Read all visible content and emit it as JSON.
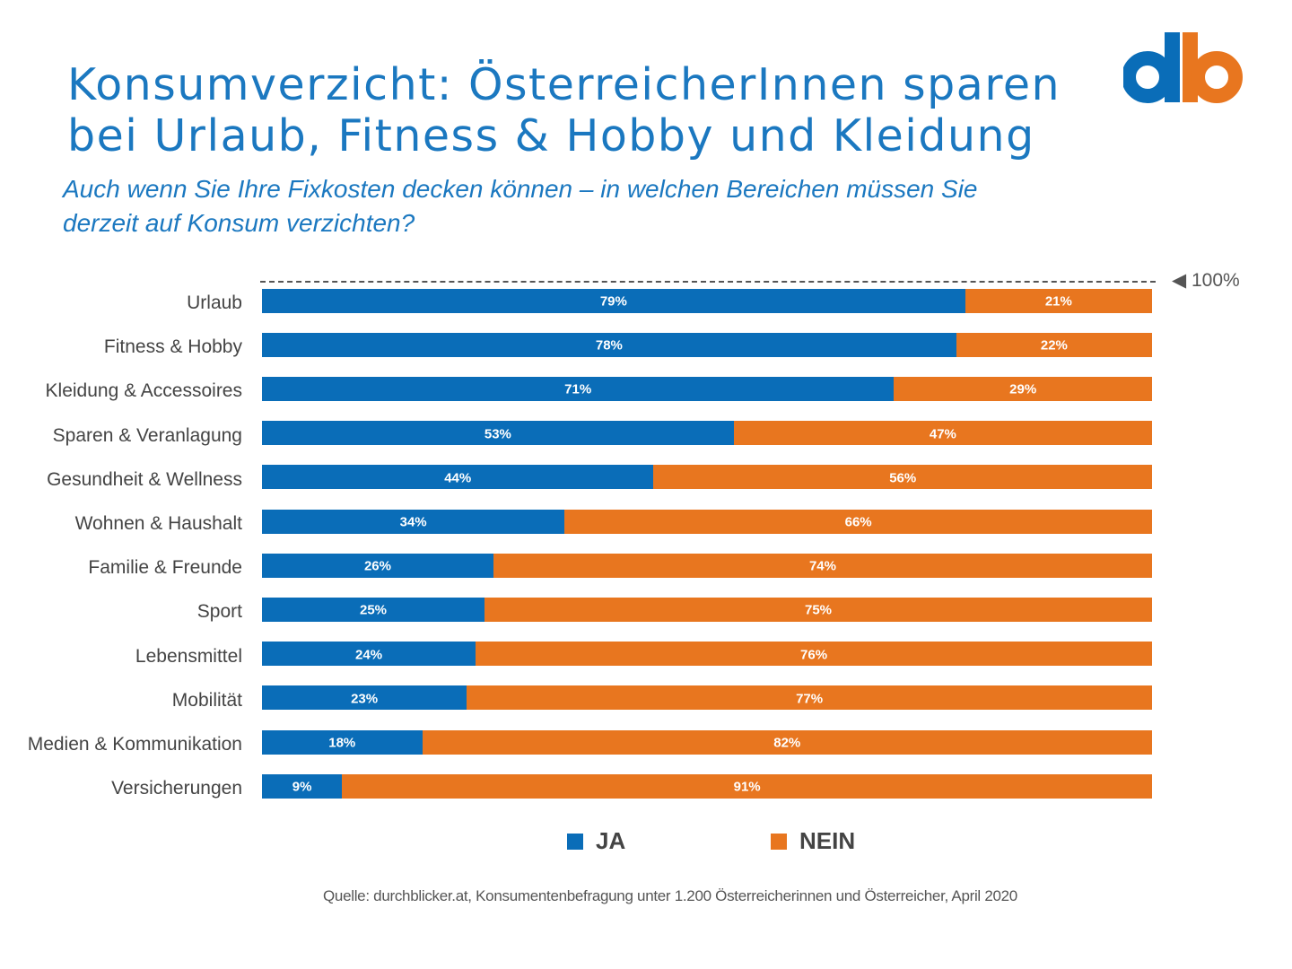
{
  "header": {
    "title_line1": "Konsumverzicht: ÖsterreicherInnen sparen",
    "title_line2": "bei Urlaub, Fitness & Hobby und Kleidung",
    "subtitle_line1": "Auch wenn Sie Ihre Fixkosten decken können – in welchen Bereichen müssen Sie",
    "subtitle_line2": "derzeit auf Konsum verzichten?",
    "logo_text": "db"
  },
  "colors": {
    "ja": "#0a6db8",
    "nein": "#e8761f",
    "title": "#1b78c0"
  },
  "chart_data": {
    "type": "bar",
    "orientation": "horizontal",
    "stacked": true,
    "categories": [
      "Urlaub",
      "Fitness & Hobby",
      "Kleidung & Accessoires",
      "Sparen & Veranlagung",
      "Gesundheit & Wellness",
      "Wohnen & Haushalt",
      "Familie & Freunde",
      "Sport",
      "Lebensmittel",
      "Mobilität",
      "Medien & Kommunikation",
      "Versicherungen"
    ],
    "series": [
      {
        "name": "JA",
        "values": [
          79,
          78,
          71,
          53,
          44,
          34,
          26,
          25,
          24,
          23,
          18,
          9
        ]
      },
      {
        "name": "NEIN",
        "values": [
          21,
          22,
          29,
          47,
          56,
          66,
          74,
          75,
          76,
          77,
          82,
          91
        ]
      }
    ],
    "reference_line": {
      "value": 100,
      "label": "100%"
    },
    "xlim": [
      0,
      100
    ],
    "value_suffix": "%",
    "legend_position": "bottom"
  },
  "footer": {
    "source": "Quelle: durchblicker.at, Konsumentenbefragung unter 1.200 Österreicherinnen und Österreicher, April 2020"
  }
}
